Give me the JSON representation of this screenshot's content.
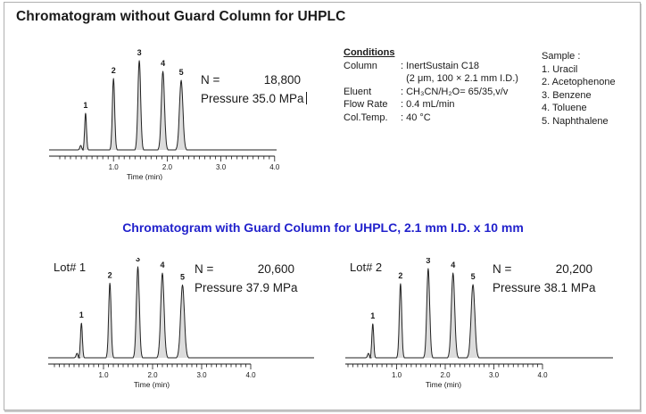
{
  "colors": {
    "accent_blue": "#2222cc",
    "text": "#1a1a1a",
    "frame_border": "#b0b0b0",
    "trace": "#222222"
  },
  "header": {
    "title": "Chromatogram without Guard Column for UHPLC"
  },
  "section2": {
    "title": "Chromatogram with Guard Column for UHPLC, 2.1 mm I.D. x 10 mm"
  },
  "conditions": {
    "header": "Conditions",
    "rows": [
      {
        "label": "Column",
        "value": ": InertSustain C18"
      },
      {
        "label": "",
        "value": "  (2 μm, 100 × 2.1 mm I.D.)"
      },
      {
        "label": "Eluent",
        "value": ": CH₃CN/H₂O= 65/35,v/v"
      },
      {
        "label": "Flow Rate",
        "value": ": 0.4 mL/min"
      },
      {
        "label": "Col.Temp.",
        "value": ": 40 °C"
      }
    ]
  },
  "sample": {
    "header": "Sample :",
    "items": [
      "1. Uracil",
      "2. Acetophenone",
      "3. Benzene",
      "4. Toluene",
      "5. Naphthalene"
    ]
  },
  "chart_data": [
    {
      "type": "line",
      "name": "chromatogram-without-guard-column",
      "lot_label": "",
      "n_label": "N =",
      "n_value": "18,800",
      "pressure": "Pressure 35.0 MPa",
      "xlabel": "Time (min)",
      "xlim": [
        0,
        4.0
      ],
      "x_ticks": [
        "1.0",
        "2.0",
        "3.0",
        "4.0"
      ],
      "peaks": [
        {
          "label": "1",
          "time": 0.48,
          "rel_height": 0.41
        },
        {
          "label": "2",
          "time": 1.0,
          "rel_height": 0.8
        },
        {
          "label": "3",
          "time": 1.48,
          "rel_height": 1.0
        },
        {
          "label": "4",
          "time": 1.92,
          "rel_height": 0.88
        },
        {
          "label": "5",
          "time": 2.26,
          "rel_height": 0.78
        }
      ]
    },
    {
      "type": "line",
      "name": "chromatogram-with-guard-column-lot1",
      "lot_label": "Lot# 1",
      "n_label": "N =",
      "n_value": "20,600",
      "pressure": "Pressure 37.9 MPa",
      "xlabel": "Time (min)",
      "xlim": [
        0,
        4.0
      ],
      "x_ticks": [
        "1.0",
        "2.0",
        "3.0",
        "4.0"
      ],
      "peaks": [
        {
          "label": "1",
          "time": 0.55,
          "rel_height": 0.38
        },
        {
          "label": "2",
          "time": 1.13,
          "rel_height": 0.82
        },
        {
          "label": "3",
          "time": 1.7,
          "rel_height": 1.0
        },
        {
          "label": "4",
          "time": 2.2,
          "rel_height": 0.93
        },
        {
          "label": "5",
          "time": 2.61,
          "rel_height": 0.8
        }
      ]
    },
    {
      "type": "line",
      "name": "chromatogram-with-guard-column-lot2",
      "lot_label": "Lot# 2",
      "n_label": "N =",
      "n_value": "20,200",
      "pressure": "Pressure 38.1 MPa",
      "xlabel": "Time (min)",
      "xlim": [
        0,
        4.0
      ],
      "x_ticks": [
        "1.0",
        "2.0",
        "3.0",
        "4.0"
      ],
      "peaks": [
        {
          "label": "1",
          "time": 0.51,
          "rel_height": 0.38
        },
        {
          "label": "2",
          "time": 1.08,
          "rel_height": 0.83
        },
        {
          "label": "3",
          "time": 1.65,
          "rel_height": 1.0
        },
        {
          "label": "4",
          "time": 2.16,
          "rel_height": 0.95
        },
        {
          "label": "5",
          "time": 2.57,
          "rel_height": 0.82
        }
      ]
    }
  ]
}
